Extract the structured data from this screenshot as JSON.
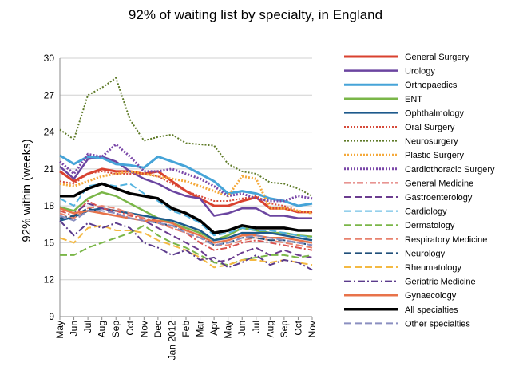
{
  "chart_data": {
    "type": "line",
    "title": "92% of waiting list by specialty, in England",
    "ylabel": "92% within (weeks)",
    "xlabel": "",
    "ylim": [
      9,
      30
    ],
    "yticks": [
      "9",
      "12",
      "15",
      "18",
      "21",
      "24",
      "27",
      "30"
    ],
    "grid": "horizontal",
    "legend_position": "right",
    "categories": [
      "May",
      "Jun",
      "Jul",
      "Aug",
      "Sep",
      "Oct",
      "Nov",
      "Dec",
      "Jan 2012",
      "Feb",
      "Mar",
      "Apr",
      "May",
      "Jun",
      "Jul",
      "Aug",
      "Sep",
      "Oct",
      "Nov"
    ],
    "series": [
      {
        "name": "General Surgery",
        "color": "#d9412f",
        "dash": "solid",
        "width": 3,
        "values": [
          20.8,
          20.0,
          20.6,
          21.0,
          20.8,
          20.8,
          20.6,
          20.8,
          20.0,
          19.2,
          18.6,
          18.0,
          18.0,
          18.4,
          18.7,
          17.8,
          17.8,
          17.5,
          17.5
        ]
      },
      {
        "name": "Urology",
        "color": "#6b45a0",
        "dash": "solid",
        "width": 2.5,
        "values": [
          21.2,
          20.2,
          21.8,
          22.0,
          21.6,
          20.8,
          20.2,
          19.8,
          19.2,
          18.8,
          18.6,
          17.2,
          17.4,
          17.8,
          17.8,
          17.2,
          17.2,
          17.0,
          17.0
        ]
      },
      {
        "name": "Orthopaedics",
        "color": "#46a4d8",
        "dash": "solid",
        "width": 3,
        "values": [
          22.1,
          21.4,
          22.0,
          21.9,
          21.4,
          21.3,
          21.1,
          22.0,
          21.6,
          21.2,
          20.6,
          20.0,
          19.0,
          19.2,
          19.0,
          18.6,
          18.4,
          18.0,
          18.2
        ]
      },
      {
        "name": "ENT",
        "color": "#7ab648",
        "dash": "solid",
        "width": 2.5,
        "values": [
          17.9,
          17.6,
          18.6,
          19.1,
          18.8,
          18.2,
          17.6,
          17.0,
          16.6,
          16.2,
          15.8,
          15.2,
          15.6,
          16.2,
          16.0,
          15.8,
          15.8,
          15.6,
          15.5
        ]
      },
      {
        "name": "Ophthalmology",
        "color": "#1d5a8c",
        "dash": "solid",
        "width": 2.5,
        "values": [
          16.8,
          17.1,
          17.6,
          17.8,
          17.6,
          17.4,
          17.2,
          17.0,
          16.8,
          16.4,
          16.0,
          15.2,
          15.4,
          15.8,
          15.8,
          15.8,
          15.6,
          15.4,
          15.2
        ]
      },
      {
        "name": "Oral Surgery",
        "color": "#d64a3a",
        "dash": "2,2",
        "width": 2,
        "values": [
          20.0,
          19.8,
          20.6,
          20.8,
          20.6,
          20.6,
          20.6,
          20.4,
          19.8,
          19.2,
          18.8,
          18.4,
          18.4,
          18.6,
          18.8,
          18.2,
          18.0,
          17.6,
          17.4
        ]
      },
      {
        "name": "Neurosurgery",
        "color": "#5e7a27",
        "dash": "2,2",
        "width": 2,
        "values": [
          24.2,
          23.4,
          27.0,
          27.6,
          28.4,
          25.0,
          23.3,
          23.6,
          23.8,
          23.1,
          23.0,
          22.9,
          21.4,
          20.8,
          20.6,
          19.9,
          19.8,
          19.4,
          18.8
        ]
      },
      {
        "name": "Plastic Surgery",
        "color": "#f5a93a",
        "dash": "2,2",
        "width": 3,
        "values": [
          19.8,
          19.6,
          20.0,
          20.4,
          20.6,
          20.8,
          20.6,
          20.4,
          20.2,
          20.0,
          19.6,
          19.2,
          18.8,
          20.4,
          20.2,
          17.8,
          17.8,
          17.6,
          17.4
        ]
      },
      {
        "name": "Cardiothoracic Surgery",
        "color": "#7a47a8",
        "dash": "2,2",
        "width": 3,
        "values": [
          21.6,
          20.6,
          22.2,
          22.0,
          23.0,
          22.0,
          20.8,
          20.8,
          21.0,
          20.6,
          20.2,
          19.6,
          18.8,
          19.0,
          18.6,
          18.4,
          18.4,
          18.8,
          18.6
        ]
      },
      {
        "name": "General Medicine",
        "color": "#d9534f",
        "dash": "8,3,2,3",
        "width": 2,
        "values": [
          17.6,
          17.2,
          18.4,
          17.8,
          17.6,
          17.2,
          17.0,
          16.8,
          16.2,
          15.8,
          15.0,
          14.4,
          14.6,
          15.0,
          15.2,
          15.0,
          14.8,
          14.6,
          14.4
        ]
      },
      {
        "name": "Gastroenterology",
        "color": "#6b3c8f",
        "dash": "9,4",
        "width": 2,
        "values": [
          17.8,
          17.4,
          18.2,
          17.8,
          17.4,
          17.0,
          16.8,
          16.2,
          15.6,
          15.0,
          14.4,
          13.4,
          13.6,
          14.2,
          14.6,
          14.0,
          14.4,
          14.0,
          13.8
        ]
      },
      {
        "name": "Cardiology",
        "color": "#54b3e0",
        "dash": "9,4",
        "width": 2,
        "values": [
          18.6,
          18.0,
          19.6,
          19.8,
          19.6,
          19.8,
          19.0,
          18.4,
          17.6,
          17.2,
          16.6,
          15.6,
          15.8,
          16.2,
          16.0,
          16.0,
          15.8,
          15.6,
          15.4
        ]
      },
      {
        "name": "Dermatology",
        "color": "#7ab648",
        "dash": "9,4",
        "width": 2,
        "values": [
          14.0,
          14.0,
          14.6,
          15.0,
          15.4,
          15.8,
          16.4,
          15.6,
          15.0,
          14.6,
          14.0,
          13.4,
          13.2,
          13.6,
          13.8,
          14.0,
          14.0,
          13.8,
          14.0
        ]
      },
      {
        "name": "Respiratory Medicine",
        "color": "#e8826e",
        "dash": "9,4",
        "width": 2,
        "values": [
          17.4,
          17.0,
          17.8,
          18.0,
          17.8,
          17.4,
          17.0,
          16.6,
          16.2,
          15.8,
          15.4,
          14.8,
          14.8,
          15.2,
          15.4,
          15.2,
          15.0,
          14.8,
          14.6
        ]
      },
      {
        "name": "Neurology",
        "color": "#1f4e79",
        "dash": "9,4",
        "width": 2,
        "values": [
          17.0,
          17.2,
          17.8,
          17.4,
          17.2,
          17.0,
          16.8,
          16.6,
          16.4,
          16.0,
          15.6,
          14.8,
          15.0,
          15.4,
          15.4,
          15.2,
          15.2,
          15.0,
          14.8
        ]
      },
      {
        "name": "Rheumatology",
        "color": "#f4b942",
        "dash": "9,4",
        "width": 2,
        "values": [
          15.4,
          15.0,
          16.2,
          16.4,
          16.0,
          16.0,
          15.8,
          15.2,
          14.8,
          14.4,
          13.8,
          13.0,
          13.2,
          13.6,
          13.6,
          13.4,
          13.6,
          13.4,
          13.2
        ]
      },
      {
        "name": "Geriatric Medicine",
        "color": "#5b3b8c",
        "dash": "9,3,2,3",
        "width": 2,
        "values": [
          16.8,
          15.6,
          16.6,
          16.2,
          16.6,
          16.2,
          15.0,
          14.6,
          14.0,
          14.4,
          13.6,
          13.8,
          13.0,
          13.4,
          14.0,
          13.2,
          13.6,
          13.4,
          12.8
        ]
      },
      {
        "name": "Gynaecology",
        "color": "#e8734a",
        "dash": "solid",
        "width": 2.5,
        "values": [
          17.8,
          17.4,
          17.6,
          17.4,
          17.2,
          17.0,
          16.8,
          16.8,
          16.6,
          16.0,
          15.6,
          15.0,
          15.2,
          15.6,
          15.6,
          15.4,
          15.4,
          15.2,
          15.0
        ]
      },
      {
        "name": "All specialties",
        "color": "#000000",
        "dash": "solid",
        "width": 3.5,
        "values": [
          18.8,
          18.8,
          19.4,
          19.8,
          19.4,
          19.0,
          18.8,
          18.6,
          17.8,
          17.4,
          16.8,
          15.8,
          16.0,
          16.4,
          16.2,
          16.2,
          16.2,
          16.0,
          16.0
        ]
      },
      {
        "name": "Other specialties",
        "color": "#8a8fc0",
        "dash": "9,4",
        "width": 2,
        "values": [
          17.2,
          16.8,
          17.6,
          17.6,
          17.4,
          17.0,
          16.8,
          16.6,
          16.4,
          15.8,
          15.4,
          14.8,
          15.0,
          15.4,
          15.6,
          15.4,
          15.2,
          15.0,
          14.8
        ]
      }
    ]
  }
}
